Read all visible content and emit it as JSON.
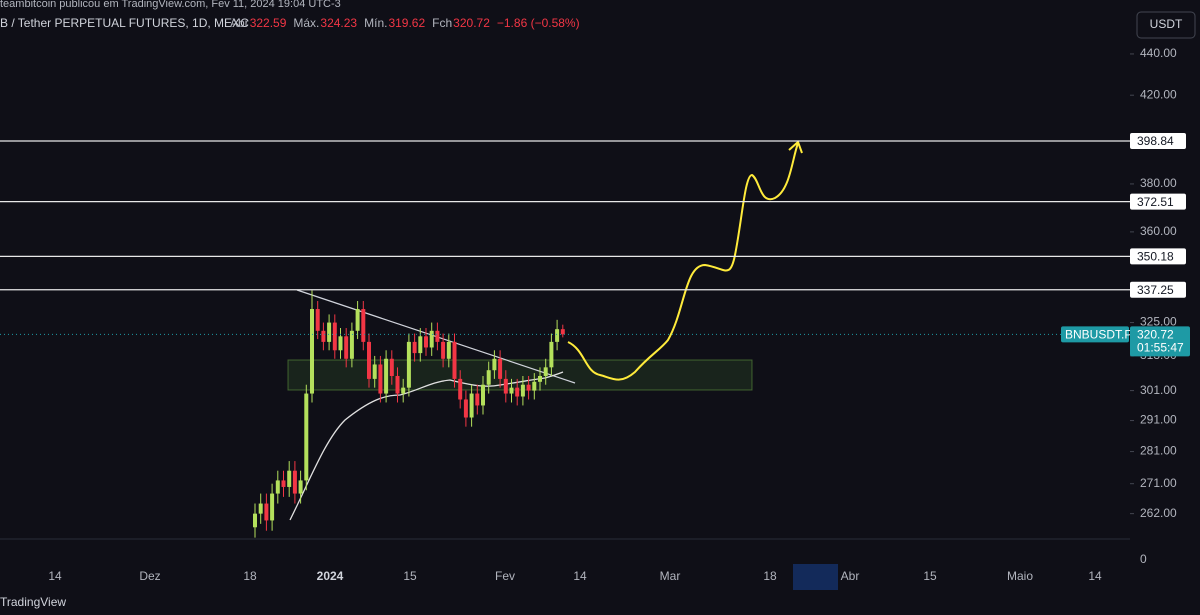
{
  "header": {
    "publisher": "teambitcoin publicou em TradingView.com, Fev 11, 2024 19:04 UTC-3",
    "symbol": "B / Tether PERPETUAL FUTURES, 1D, MEXC",
    "open_label": "Abr",
    "high_label": "Máx.",
    "low_label": "Mín.",
    "close_label": "Fch",
    "change": "−1.86 (−0.58%)"
  },
  "currency": "USDT",
  "ticker": "BNBUSDT.P",
  "countdown": "01:55:47",
  "footer": "TradingView",
  "chart_data": {
    "type": "candlestick",
    "open": [
      258,
      262,
      265,
      260,
      268,
      272,
      270,
      275,
      268,
      272,
      300,
      330,
      322,
      318,
      325,
      315,
      320,
      312,
      322,
      330,
      318,
      305,
      310,
      300,
      312,
      306,
      300,
      302,
      318,
      314,
      320,
      316,
      322,
      318,
      312,
      318,
      305,
      298,
      292,
      300,
      296,
      303,
      308,
      312,
      305,
      300,
      302,
      299,
      303,
      301,
      304,
      306,
      309,
      318,
      322.59
    ],
    "high": [
      265,
      268,
      268,
      271,
      275,
      275,
      278,
      278,
      275,
      303,
      337,
      333,
      325,
      328,
      328,
      323,
      323,
      325,
      333,
      333,
      321,
      313,
      313,
      315,
      315,
      309,
      305,
      321,
      321,
      323,
      323,
      325,
      325,
      321,
      321,
      321,
      308,
      301,
      303,
      303,
      306,
      311,
      315,
      315,
      308,
      305,
      305,
      306,
      306,
      307,
      309,
      312,
      321,
      326,
      324.23
    ],
    "low": [
      255,
      259,
      257,
      257,
      265,
      267,
      267,
      265,
      265,
      269,
      297,
      319,
      315,
      315,
      312,
      312,
      309,
      309,
      319,
      315,
      302,
      302,
      297,
      297,
      303,
      297,
      297,
      299,
      311,
      311,
      313,
      313,
      315,
      309,
      309,
      302,
      295,
      289,
      289,
      293,
      293,
      300,
      305,
      302,
      297,
      297,
      296,
      296,
      298,
      298,
      301,
      303,
      306,
      315,
      319.62
    ],
    "close": [
      262,
      265,
      260,
      268,
      272,
      270,
      275,
      268,
      272,
      300,
      330,
      322,
      318,
      325,
      315,
      320,
      312,
      322,
      330,
      318,
      305,
      310,
      300,
      312,
      306,
      300,
      302,
      318,
      314,
      320,
      316,
      322,
      318,
      312,
      318,
      305,
      298,
      292,
      300,
      296,
      303,
      308,
      312,
      305,
      300,
      302,
      299,
      303,
      301,
      304,
      306,
      309,
      318,
      322.59,
      320.72
    ],
    "up_color": "#b4e05c",
    "down_color": "#f23645",
    "log": true,
    "ylim": [
      254.9,
      467.6
    ],
    "yticks": [
      {
        "value": 440,
        "label": "440.00"
      },
      {
        "value": 420,
        "label": "420.00"
      },
      {
        "value": 380,
        "label": "380.00"
      },
      {
        "value": 360,
        "label": "360.00"
      },
      {
        "value": 325,
        "label": "325.00"
      },
      {
        "value": 313,
        "label": "313.00"
      },
      {
        "value": 301,
        "label": "301.00"
      },
      {
        "value": 291,
        "label": "291.00"
      },
      {
        "value": 281,
        "label": "281.00"
      },
      {
        "value": 271,
        "label": "271.00"
      },
      {
        "value": 262,
        "label": "262.00"
      }
    ],
    "price_lines": [
      398.84,
      372.51,
      350.18,
      337.25
    ],
    "volume_ticks": [
      0
    ],
    "xlabels": [
      "14",
      "Dez",
      "18",
      "2024",
      "15",
      "Fev",
      "14",
      "Mar",
      "18",
      "Abr",
      "15",
      "Maio",
      "14"
    ]
  }
}
